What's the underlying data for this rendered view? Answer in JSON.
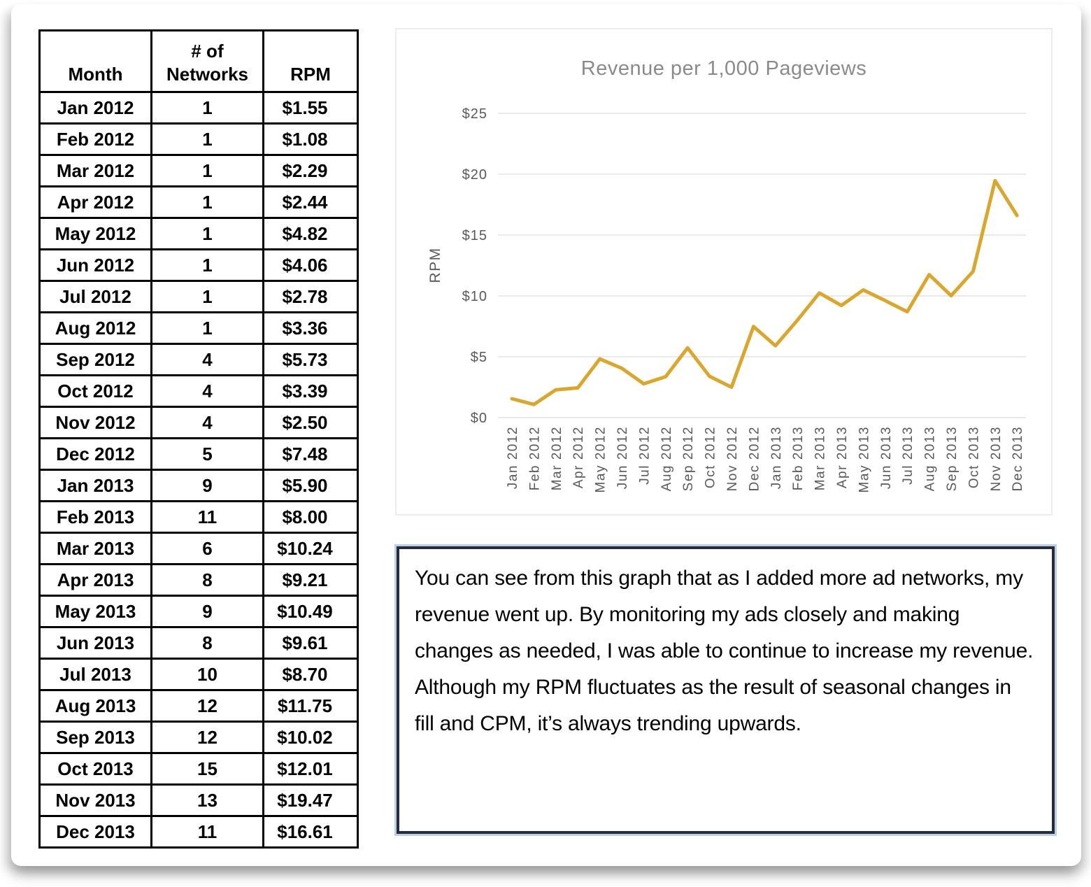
{
  "table": {
    "headers": [
      "Month",
      "# of\nNetworks",
      "RPM"
    ],
    "rows": [
      [
        "Jan 2012",
        "1",
        "$1.55"
      ],
      [
        "Feb 2012",
        "1",
        "$1.08"
      ],
      [
        "Mar 2012",
        "1",
        "$2.29"
      ],
      [
        "Apr 2012",
        "1",
        "$2.44"
      ],
      [
        "May 2012",
        "1",
        "$4.82"
      ],
      [
        "Jun 2012",
        "1",
        "$4.06"
      ],
      [
        "Jul 2012",
        "1",
        "$2.78"
      ],
      [
        "Aug 2012",
        "1",
        "$3.36"
      ],
      [
        "Sep 2012",
        "4",
        "$5.73"
      ],
      [
        "Oct 2012",
        "4",
        "$3.39"
      ],
      [
        "Nov 2012",
        "4",
        "$2.50"
      ],
      [
        "Dec 2012",
        "5",
        "$7.48"
      ],
      [
        "Jan 2013",
        "9",
        "$5.90"
      ],
      [
        "Feb 2013",
        "11",
        "$8.00"
      ],
      [
        "Mar 2013",
        "6",
        "$10.24"
      ],
      [
        "Apr 2013",
        "8",
        "$9.21"
      ],
      [
        "May 2013",
        "9",
        "$10.49"
      ],
      [
        "Jun 2013",
        "8",
        "$9.61"
      ],
      [
        "Jul 2013",
        "10",
        "$8.70"
      ],
      [
        "Aug 2013",
        "12",
        "$11.75"
      ],
      [
        "Sep 2013",
        "12",
        "$10.02"
      ],
      [
        "Oct 2013",
        "15",
        "$12.01"
      ],
      [
        "Nov 2013",
        "13",
        "$19.47"
      ],
      [
        "Dec 2013",
        "11",
        "$16.61"
      ]
    ]
  },
  "chart_data": {
    "type": "line",
    "title": "Revenue per 1,000 Pageviews",
    "xlabel": "",
    "ylabel": "RPM",
    "x": [
      "Jan 2012",
      "Feb 2012",
      "Mar 2012",
      "Apr 2012",
      "May 2012",
      "Jun 2012",
      "Jul 2012",
      "Aug 2012",
      "Sep 2012",
      "Oct 2012",
      "Nov 2012",
      "Dec 2012",
      "Jan 2013",
      "Feb 2013",
      "Mar 2013",
      "Apr 2013",
      "May 2013",
      "Jun 2013",
      "Jul 2013",
      "Aug 2013",
      "Sep 2013",
      "Oct 2013",
      "Nov 2013",
      "Dec 2013"
    ],
    "series": [
      {
        "name": "RPM",
        "values": [
          1.55,
          1.08,
          2.29,
          2.44,
          4.82,
          4.06,
          2.78,
          3.36,
          5.73,
          3.39,
          2.5,
          7.48,
          5.9,
          8.0,
          10.24,
          9.21,
          10.49,
          9.61,
          8.7,
          11.75,
          10.02,
          12.01,
          19.47,
          16.61
        ]
      }
    ],
    "ylim": [
      0,
      25
    ],
    "ytick_values": [
      0,
      5,
      10,
      15,
      20,
      25
    ],
    "ytick_labels": [
      "$0",
      "$5",
      "$10",
      "$15",
      "$20",
      "$25"
    ],
    "grid": true,
    "legend": "none",
    "line_color": "#D9A62E",
    "axis_text_color": "#595959",
    "grid_color": "#e9e9e9",
    "title_color": "#8a8a8a"
  },
  "note": {
    "text": "You can see from this graph that as I added more ad networks, my revenue went up. By monitoring my ads closely and making changes as needed, I was able to continue to increase my revenue. Although my RPM fluctuates as the result of seasonal changes in fill and CPM, it’s always trending upwards."
  }
}
